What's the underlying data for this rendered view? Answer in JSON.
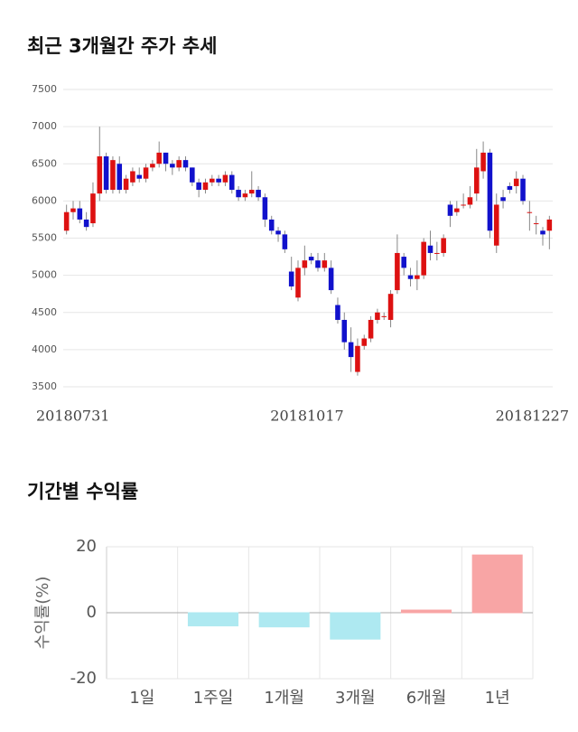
{
  "chart_data": [
    {
      "type": "candlestick",
      "title": "최근 3개월간 주가 추세",
      "x_labels": [
        "20180731",
        "20181017",
        "20181227"
      ],
      "up_color": "#dd1111",
      "down_color": "#1111cc",
      "open": [
        5600,
        5850,
        5900,
        5750,
        5700,
        6100,
        6600,
        6150,
        6500,
        6150,
        6250,
        6350,
        6300,
        6450,
        6500,
        6650,
        6500,
        6450,
        6550,
        6450,
        6250,
        6150,
        6250,
        6300,
        6250,
        6350,
        6150,
        6050,
        6100,
        6150,
        6050,
        5750,
        5600,
        5550,
        5050,
        4700,
        5100,
        5250,
        5200,
        5100,
        5100,
        4600,
        4400,
        4100,
        3700,
        4050,
        4150,
        4400,
        4450,
        4400,
        4800,
        5250,
        5000,
        4950,
        5000,
        5400,
        5300,
        5300,
        5950,
        5850,
        5950,
        5950,
        6100,
        6400,
        6650,
        5400,
        6050,
        6200,
        6200,
        6300,
        5850,
        5700,
        5600,
        5600
      ],
      "close": [
        5850,
        5900,
        5750,
        5650,
        6100,
        6600,
        6150,
        6550,
        6150,
        6300,
        6400,
        6300,
        6450,
        6500,
        6650,
        6500,
        6450,
        6550,
        6450,
        6250,
        6150,
        6250,
        6300,
        6250,
        6350,
        6150,
        6050,
        6100,
        6150,
        6050,
        5750,
        5600,
        5550,
        5350,
        4850,
        5100,
        5200,
        5200,
        5100,
        5200,
        4800,
        4400,
        4100,
        3900,
        4050,
        4150,
        4400,
        4500,
        4450,
        4750,
        5300,
        5100,
        4950,
        5000,
        5450,
        5300,
        5300,
        5500,
        5800,
        5900,
        5950,
        6050,
        6450,
        6650,
        5600,
        5950,
        6000,
        6150,
        6300,
        6000,
        5850,
        5700,
        5550,
        5750
      ],
      "high": [
        5950,
        6000,
        6000,
        5850,
        6250,
        7000,
        6650,
        6600,
        6600,
        6350,
        6450,
        6450,
        6500,
        6550,
        6800,
        6650,
        6550,
        6600,
        6600,
        6450,
        6300,
        6300,
        6350,
        6350,
        6400,
        6400,
        6200,
        6150,
        6400,
        6200,
        6100,
        5800,
        5650,
        5600,
        5250,
        5200,
        5400,
        5300,
        5300,
        5300,
        5200,
        4700,
        4500,
        4300,
        4150,
        4200,
        4450,
        4550,
        4500,
        4800,
        5550,
        5300,
        5100,
        5200,
        5500,
        5600,
        5450,
        5550,
        6000,
        6000,
        6100,
        6200,
        6700,
        6800,
        6700,
        6100,
        6150,
        6250,
        6400,
        6350,
        6000,
        5800,
        5650,
        5800
      ],
      "low": [
        5550,
        5750,
        5700,
        5600,
        5650,
        6000,
        6100,
        6100,
        6100,
        6100,
        6200,
        6250,
        6250,
        6400,
        6450,
        6400,
        6350,
        6400,
        6400,
        6200,
        6050,
        6100,
        6200,
        6200,
        6200,
        6100,
        6000,
        6000,
        6050,
        6000,
        5650,
        5550,
        5450,
        5300,
        4800,
        4650,
        5000,
        5150,
        5050,
        5050,
        4750,
        4350,
        4000,
        3700,
        3650,
        4000,
        4100,
        4350,
        4400,
        4300,
        4750,
        5000,
        4850,
        4800,
        4950,
        5200,
        5200,
        5250,
        5650,
        5800,
        5900,
        5900,
        6000,
        6300,
        5500,
        5300,
        5900,
        6100,
        6100,
        5950,
        5600,
        5550,
        5400,
        5350
      ],
      "ylim": [
        3500,
        7500
      ],
      "yticks": [
        3500,
        4000,
        4500,
        5000,
        5500,
        6000,
        6500,
        7000,
        7500
      ],
      "grid": true
    },
    {
      "type": "bar",
      "title": "기간별 수익률",
      "ylabel": "수익률(%)",
      "categories": [
        "1일",
        "1주일",
        "1개월",
        "3개월",
        "6개월",
        "1년"
      ],
      "values": [
        0,
        -4,
        -4.3,
        -8,
        0.8,
        17.5
      ],
      "colors": [
        "#aee9f1",
        "#aee9f1",
        "#aee9f1",
        "#aee9f1",
        "#f8a5a5",
        "#f8a5a5"
      ],
      "ylim": [
        -20,
        20
      ],
      "yticks": [
        -20,
        0,
        20
      ],
      "grid": true
    }
  ]
}
